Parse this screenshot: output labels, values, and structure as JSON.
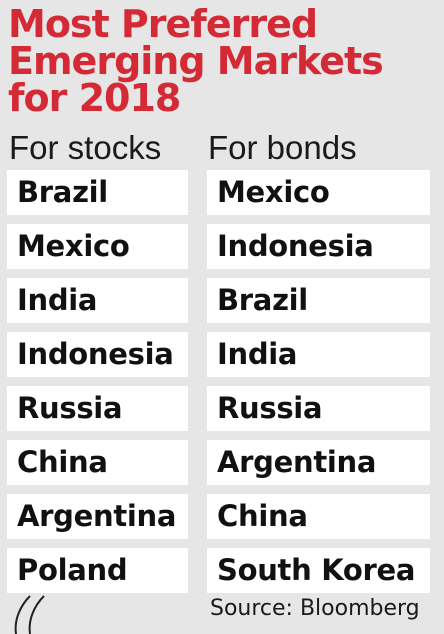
{
  "title_lines": [
    "Most Preferred",
    "Emerging Markets",
    "for 2018"
  ],
  "stocks": {
    "heading": "For stocks",
    "items": [
      "Brazil",
      "Mexico",
      "India",
      "Indonesia",
      "Russia",
      "China",
      "Argentina",
      "Poland"
    ]
  },
  "bonds": {
    "heading": "For bonds",
    "items": [
      "Mexico",
      "Indonesia",
      "Brazil",
      "India",
      "Russia",
      "Argentina",
      "China",
      "South Korea"
    ]
  },
  "source": "Source: Bloomberg",
  "colors": {
    "title": "#d42a36",
    "background": "#e6e6e6",
    "cell": "#ffffff",
    "text": "#111111"
  }
}
